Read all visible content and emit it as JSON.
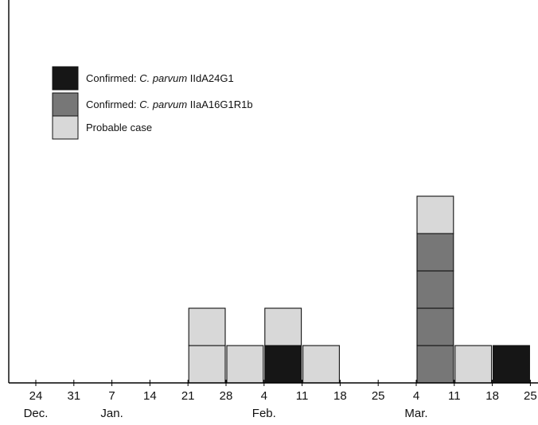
{
  "chart_data": {
    "type": "bar",
    "subtype": "epidemic-curve-stacked-cases",
    "x_axis": {
      "ticks": [
        "24",
        "31",
        "7",
        "14",
        "21",
        "28",
        "4",
        "11",
        "18",
        "25",
        "4",
        "11",
        "18",
        "25"
      ],
      "month_labels": [
        "Dec.",
        "Jan.",
        "Feb.",
        "Mar."
      ],
      "month_label_tick_index": [
        0,
        2,
        6,
        10
      ]
    },
    "ylim": [
      0,
      8
    ],
    "grid": false,
    "legend_position": "top-left",
    "series": [
      {
        "id": "confirmed_iid",
        "label_prefix": "Confirmed: ",
        "label_species": "C. parvum",
        "label_suffix": " IIdA24G1",
        "color": "#161616"
      },
      {
        "id": "confirmed_iia",
        "label_prefix": "Confirmed: ",
        "label_species": "C. parvum",
        "label_suffix": " IIaA16G1R1b",
        "color": "#777777"
      },
      {
        "id": "probable",
        "label": "Probable case",
        "color": "#d8d8d8"
      }
    ],
    "cases": [
      {
        "week_start_tick": 4,
        "stack": [
          "probable",
          "probable"
        ]
      },
      {
        "week_start_tick": 5,
        "stack": [
          "probable"
        ]
      },
      {
        "week_start_tick": 6,
        "stack": [
          "confirmed_iid",
          "probable"
        ]
      },
      {
        "week_start_tick": 7,
        "stack": [
          "probable"
        ]
      },
      {
        "week_start_tick": 10,
        "stack": [
          "confirmed_iia",
          "confirmed_iia",
          "confirmed_iia",
          "confirmed_iia",
          "probable"
        ]
      },
      {
        "week_start_tick": 11,
        "stack": [
          "probable"
        ]
      },
      {
        "week_start_tick": 12,
        "stack": [
          "confirmed_iid"
        ]
      }
    ]
  }
}
